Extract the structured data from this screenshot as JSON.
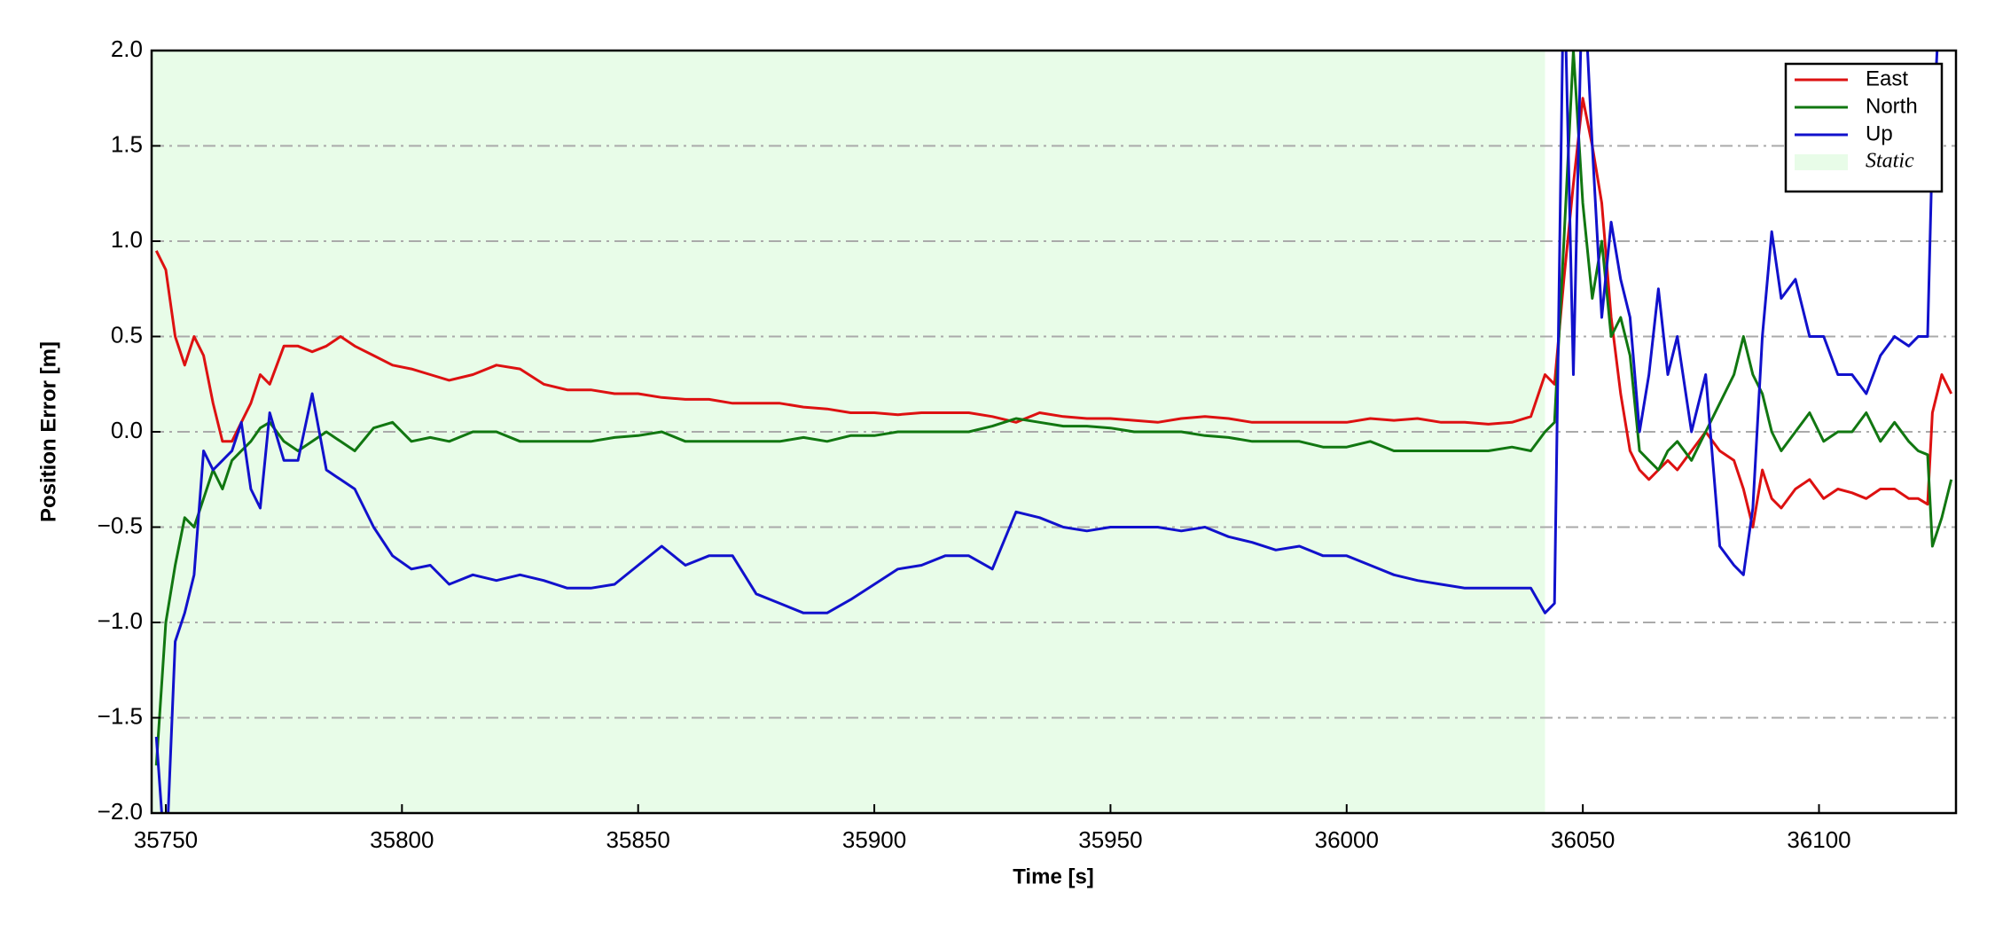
{
  "chart_data": {
    "type": "line",
    "xlabel": "Time [s]",
    "ylabel": "Position Error [m]",
    "xlim": [
      35747,
      36129
    ],
    "ylim": [
      -2,
      2
    ],
    "xticks": [
      35750,
      35800,
      35850,
      35900,
      35950,
      36000,
      36050,
      36100
    ],
    "yticks": [
      {
        "value": -2,
        "label": "−2.0"
      },
      {
        "value": -1.5,
        "label": "−1.5"
      },
      {
        "value": -1,
        "label": "−1.0"
      },
      {
        "value": -0.5,
        "label": "−0.5"
      },
      {
        "value": 0,
        "label": "0.0"
      },
      {
        "value": 0.5,
        "label": "0.5"
      },
      {
        "value": 1,
        "label": "1.0"
      },
      {
        "value": 1.5,
        "label": "1.5"
      },
      {
        "value": 2,
        "label": "2.0"
      }
    ],
    "grid": true,
    "legend": "upper right",
    "shaded_region": {
      "name": "Static",
      "color": "#e8fce8",
      "x": [
        35747,
        36042
      ]
    },
    "x": [
      35748,
      35750,
      35752,
      35754,
      35756,
      35758,
      35760,
      35762,
      35764,
      35766,
      35768,
      35770,
      35772,
      35775,
      35778,
      35781,
      35784,
      35787,
      35790,
      35794,
      35798,
      35802,
      35806,
      35810,
      35815,
      35820,
      35825,
      35830,
      35835,
      35840,
      35845,
      35850,
      35855,
      35860,
      35865,
      35870,
      35875,
      35880,
      35885,
      35890,
      35895,
      35900,
      35905,
      35910,
      35915,
      35920,
      35925,
      35930,
      35935,
      35940,
      35945,
      35950,
      35955,
      35960,
      35965,
      35970,
      35975,
      35980,
      35985,
      35990,
      35995,
      36000,
      36005,
      36010,
      36015,
      36020,
      36025,
      36030,
      36035,
      36039,
      36042,
      36044,
      36046,
      36048,
      36050,
      36052,
      36054,
      36056,
      36058,
      36060,
      36062,
      36064,
      36066,
      36068,
      36070,
      36073,
      36076,
      36079,
      36082,
      36084,
      36086,
      36088,
      36090,
      36092,
      36095,
      36098,
      36101,
      36104,
      36107,
      36110,
      36113,
      36116,
      36119,
      36121,
      36123,
      36124,
      36126,
      36128
    ],
    "series": [
      {
        "name": "East",
        "color": "#dd1111",
        "values": [
          0.95,
          0.85,
          0.5,
          0.35,
          0.5,
          0.4,
          0.15,
          -0.05,
          -0.05,
          0.05,
          0.15,
          0.3,
          0.25,
          0.45,
          0.45,
          0.42,
          0.45,
          0.5,
          0.45,
          0.4,
          0.35,
          0.33,
          0.3,
          0.27,
          0.3,
          0.35,
          0.33,
          0.25,
          0.22,
          0.22,
          0.2,
          0.2,
          0.18,
          0.17,
          0.17,
          0.15,
          0.15,
          0.15,
          0.13,
          0.12,
          0.1,
          0.1,
          0.09,
          0.1,
          0.1,
          0.1,
          0.08,
          0.05,
          0.1,
          0.08,
          0.07,
          0.07,
          0.06,
          0.05,
          0.07,
          0.08,
          0.07,
          0.05,
          0.05,
          0.05,
          0.05,
          0.05,
          0.07,
          0.06,
          0.07,
          0.05,
          0.05,
          0.04,
          0.05,
          0.08,
          0.3,
          0.25,
          0.8,
          1.3,
          1.75,
          1.5,
          1.2,
          0.6,
          0.2,
          -0.1,
          -0.2,
          -0.25,
          -0.2,
          -0.15,
          -0.2,
          -0.1,
          0.0,
          -0.1,
          -0.15,
          -0.3,
          -0.5,
          -0.2,
          -0.35,
          -0.4,
          -0.3,
          -0.25,
          -0.35,
          -0.3,
          -0.32,
          -0.35,
          -0.3,
          -0.3,
          -0.35,
          -0.35,
          -0.38,
          0.1,
          0.3,
          0.2
        ]
      },
      {
        "name": "North",
        "color": "#117711",
        "values": [
          -1.75,
          -1.0,
          -0.7,
          -0.45,
          -0.5,
          -0.35,
          -0.2,
          -0.3,
          -0.15,
          -0.1,
          -0.05,
          0.02,
          0.05,
          -0.05,
          -0.1,
          -0.05,
          0.0,
          -0.05,
          -0.1,
          0.02,
          0.05,
          -0.05,
          -0.03,
          -0.05,
          0.0,
          0.0,
          -0.05,
          -0.05,
          -0.05,
          -0.05,
          -0.03,
          -0.02,
          0.0,
          -0.05,
          -0.05,
          -0.05,
          -0.05,
          -0.05,
          -0.03,
          -0.05,
          -0.02,
          -0.02,
          0.0,
          0.0,
          0.0,
          0.0,
          0.03,
          0.07,
          0.05,
          0.03,
          0.03,
          0.02,
          0.0,
          0.0,
          0.0,
          -0.02,
          -0.03,
          -0.05,
          -0.05,
          -0.05,
          -0.08,
          -0.08,
          -0.05,
          -0.1,
          -0.1,
          -0.1,
          -0.1,
          -0.1,
          -0.08,
          -0.1,
          0.0,
          0.05,
          1.0,
          2.0,
          1.2,
          0.7,
          1.0,
          0.5,
          0.6,
          0.4,
          -0.1,
          -0.15,
          -0.2,
          -0.1,
          -0.05,
          -0.15,
          0.0,
          0.15,
          0.3,
          0.5,
          0.3,
          0.2,
          0.0,
          -0.1,
          0.0,
          0.1,
          -0.05,
          0.0,
          0.0,
          0.1,
          -0.05,
          0.05,
          -0.05,
          -0.1,
          -0.12,
          -0.6,
          -0.45,
          -0.25
        ]
      },
      {
        "name": "Up",
        "color": "#1111cc",
        "values": [
          -1.6,
          -2.3,
          -1.1,
          -0.95,
          -0.75,
          -0.1,
          -0.2,
          -0.15,
          -0.1,
          0.05,
          -0.3,
          -0.4,
          0.1,
          -0.15,
          -0.15,
          0.2,
          -0.2,
          -0.25,
          -0.3,
          -0.5,
          -0.65,
          -0.72,
          -0.7,
          -0.8,
          -0.75,
          -0.78,
          -0.75,
          -0.78,
          -0.82,
          -0.82,
          -0.8,
          -0.7,
          -0.6,
          -0.7,
          -0.65,
          -0.65,
          -0.85,
          -0.9,
          -0.95,
          -0.95,
          -0.88,
          -0.8,
          -0.72,
          -0.7,
          -0.65,
          -0.65,
          -0.72,
          -0.42,
          -0.45,
          -0.5,
          -0.52,
          -0.5,
          -0.5,
          -0.5,
          -0.52,
          -0.5,
          -0.55,
          -0.58,
          -0.62,
          -0.6,
          -0.65,
          -0.65,
          -0.7,
          -0.75,
          -0.78,
          -0.8,
          -0.82,
          -0.82,
          -0.82,
          -0.82,
          -0.95,
          -0.9,
          2.5,
          0.3,
          2.5,
          1.5,
          0.6,
          1.1,
          0.8,
          0.6,
          0.0,
          0.3,
          0.75,
          0.3,
          0.5,
          0.0,
          0.3,
          -0.6,
          -0.7,
          -0.75,
          -0.4,
          0.5,
          1.05,
          0.7,
          0.8,
          0.5,
          0.5,
          0.3,
          0.3,
          0.2,
          0.4,
          0.5,
          0.45,
          0.5,
          0.5,
          1.5,
          2.5,
          2.1
        ]
      }
    ]
  }
}
